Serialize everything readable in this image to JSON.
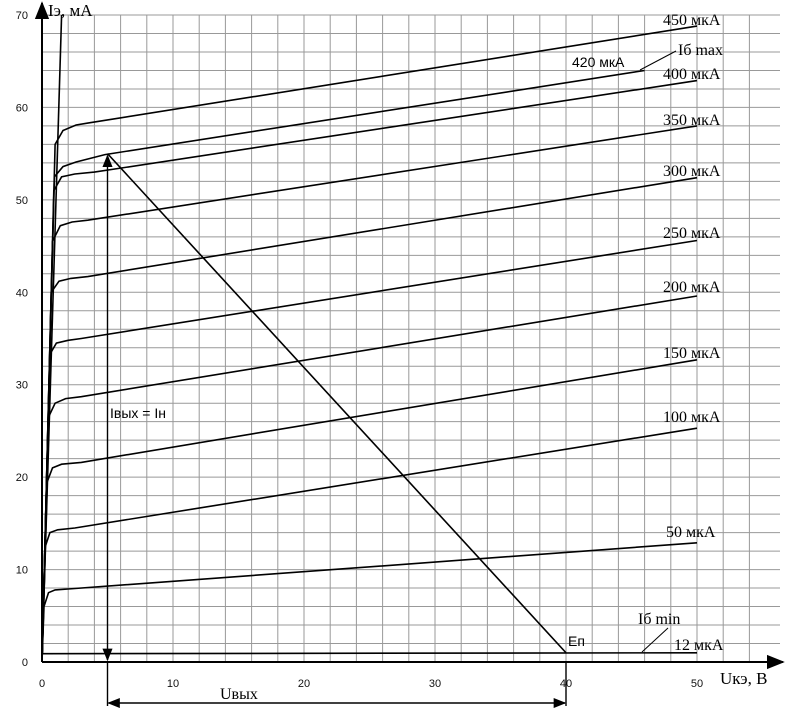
{
  "chart_data": {
    "type": "line",
    "title": "",
    "xlabel": "Uкэ, В",
    "ylabel": "Iэ, мА",
    "xlim": [
      0,
      50
    ],
    "ylim": [
      0,
      70
    ],
    "x_ticks": [
      0,
      10,
      20,
      30,
      40,
      50
    ],
    "y_ticks": [
      0,
      10,
      20,
      30,
      40,
      50,
      60,
      70
    ],
    "grid": true,
    "series": [
      {
        "name": "12 мкА",
        "x": [
          0,
          50
        ],
        "y": [
          0.9,
          1.0
        ]
      },
      {
        "name": "50 мкА",
        "x": [
          0,
          0.15,
          0.5,
          1,
          2,
          50
        ],
        "y": [
          0,
          6,
          7.5,
          7.8,
          7.9,
          12.9
        ]
      },
      {
        "name": "100 мкА",
        "x": [
          0,
          0.25,
          0.6,
          1.2,
          2.5,
          50
        ],
        "y": [
          0,
          12.5,
          14,
          14.3,
          14.5,
          25.3
        ]
      },
      {
        "name": "150 мкА",
        "x": [
          0,
          0.4,
          0.8,
          1.5,
          3,
          50
        ],
        "y": [
          0,
          19.5,
          21,
          21.4,
          21.6,
          32.7
        ]
      },
      {
        "name": "200 мкА",
        "x": [
          0,
          0.5,
          1,
          1.8,
          3,
          50
        ],
        "y": [
          0,
          26.5,
          28,
          28.5,
          28.7,
          39.6
        ]
      },
      {
        "name": "250 мкА",
        "x": [
          0,
          0.6,
          1.1,
          2,
          3,
          50
        ],
        "y": [
          0,
          33.3,
          34.5,
          34.8,
          35,
          45.6
        ]
      },
      {
        "name": "300 мкА",
        "x": [
          0,
          0.7,
          1.3,
          2.2,
          3.5,
          50
        ],
        "y": [
          0,
          40,
          41.2,
          41.5,
          41.7,
          52.4
        ]
      },
      {
        "name": "350 мкА",
        "x": [
          0,
          0.8,
          1.4,
          2.3,
          3.5,
          50
        ],
        "y": [
          0,
          45.5,
          47.2,
          47.6,
          47.8,
          58
        ]
      },
      {
        "name": "400 мкА",
        "x": [
          0,
          0.9,
          1.5,
          2.5,
          4,
          50
        ],
        "y": [
          0,
          51,
          52.5,
          52.8,
          53,
          62.9
        ]
      },
      {
        "name": "420 мкА",
        "x": [
          0,
          0.95,
          1.6,
          2.6,
          4.8,
          46
        ],
        "y": [
          0,
          52.5,
          53.6,
          54.1,
          54.9,
          64
        ]
      },
      {
        "name": "450 мкА",
        "x": [
          0,
          1,
          1.6,
          2.6,
          3.5,
          50
        ],
        "y": [
          0,
          56,
          57.5,
          58.1,
          58.3,
          68.8
        ]
      },
      {
        "name": "",
        "x": [
          0,
          1.5
        ],
        "y": [
          0,
          70
        ]
      }
    ],
    "load_line": {
      "x": [
        5,
        40
      ],
      "y": [
        55,
        1
      ]
    },
    "operating_point": {
      "x": 5,
      "y": 55
    },
    "annotations": {
      "output_current": "Iвых = Iн",
      "output_voltage": "Uвых",
      "supply": "Eп",
      "ib_max": "Iб max",
      "ib_min": "Iб min"
    }
  }
}
